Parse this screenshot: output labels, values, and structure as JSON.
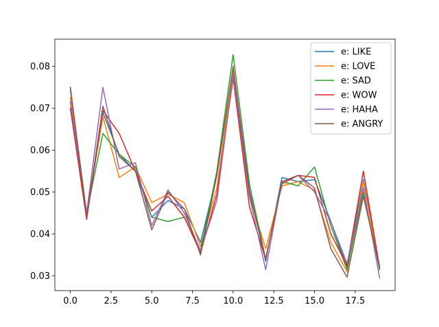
{
  "chart_data": {
    "type": "line",
    "title": "",
    "xlabel": "",
    "ylabel": "",
    "xlim": [
      -0.95,
      19.95
    ],
    "ylim": [
      0.0265,
      0.0865
    ],
    "x_ticks": [
      0,
      2.5,
      5,
      7.5,
      10,
      12.5,
      15,
      17.5
    ],
    "x_tick_labels": [
      "0.0",
      "2.5",
      "5.0",
      "7.5",
      "10.0",
      "12.5",
      "15.0",
      "17.5"
    ],
    "y_ticks": [
      0.03,
      0.04,
      0.05,
      0.06,
      0.07,
      0.08
    ],
    "y_tick_labels": [
      "0.03",
      "0.04",
      "0.05",
      "0.06",
      "0.07",
      "0.08"
    ],
    "grid": false,
    "legend_position": "top-right",
    "x": [
      0,
      1,
      2,
      3,
      4,
      5,
      6,
      7,
      8,
      9,
      10,
      11,
      12,
      13,
      14,
      15,
      16,
      17,
      18,
      19
    ],
    "series": [
      {
        "name": "e: LIKE",
        "color": "#1f77b4",
        "values": [
          0.0745,
          0.0445,
          0.069,
          0.059,
          0.055,
          0.044,
          0.048,
          0.046,
          0.038,
          0.054,
          0.0795,
          0.0505,
          0.0335,
          0.0535,
          0.0525,
          0.053,
          0.043,
          0.032,
          0.053,
          0.032
        ]
      },
      {
        "name": "e: LOVE",
        "color": "#ff7f0e",
        "values": [
          0.0725,
          0.045,
          0.068,
          0.0535,
          0.056,
          0.0475,
          0.0495,
          0.0475,
          0.037,
          0.051,
          0.079,
          0.049,
          0.0365,
          0.0515,
          0.0525,
          0.0505,
          0.038,
          0.031,
          0.0525,
          0.0315
        ]
      },
      {
        "name": "e: SAD",
        "color": "#2ca02c",
        "values": [
          0.075,
          0.045,
          0.064,
          0.059,
          0.056,
          0.044,
          0.043,
          0.044,
          0.036,
          0.055,
          0.0828,
          0.052,
          0.034,
          0.0525,
          0.0515,
          0.056,
          0.042,
          0.0315,
          0.05,
          0.0315
        ]
      },
      {
        "name": "e: WOW",
        "color": "#d62728",
        "values": [
          0.07,
          0.0435,
          0.0695,
          0.064,
          0.055,
          0.0455,
          0.049,
          0.044,
          0.0355,
          0.0495,
          0.0772,
          0.0465,
          0.034,
          0.052,
          0.054,
          0.0535,
          0.04,
          0.0325,
          0.055,
          0.032
        ]
      },
      {
        "name": "e: HAHA",
        "color": "#9467bd",
        "values": [
          0.0715,
          0.045,
          0.075,
          0.0555,
          0.057,
          0.042,
          0.0505,
          0.045,
          0.036,
          0.048,
          0.078,
          0.049,
          0.0315,
          0.0525,
          0.054,
          0.05,
          0.043,
          0.033,
          0.051,
          0.0295
        ]
      },
      {
        "name": "e: ANGRY",
        "color": "#8c564b",
        "values": [
          0.075,
          0.044,
          0.0705,
          0.0585,
          0.055,
          0.041,
          0.05,
          0.046,
          0.035,
          0.054,
          0.08,
          0.05,
          0.034,
          0.0525,
          0.054,
          0.051,
          0.0365,
          0.0297,
          0.049,
          0.032
        ]
      }
    ]
  }
}
